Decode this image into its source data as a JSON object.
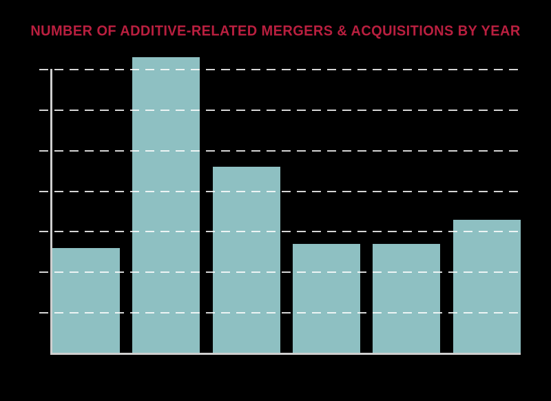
{
  "title": {
    "text": "NUMBER OF ADDITIVE-RELATED MERGERS & ACQUISITIONS BY YEAR"
  },
  "theme": {
    "background": "#000000",
    "title_color": "#b91f3f",
    "bar_color": "#8ec0c2",
    "gridline_color": "#ffffff",
    "gridline_opacity": "0.84",
    "axis_color": "#cfcfcf",
    "hidden_label_color": "#000000"
  },
  "chart_data": {
    "type": "bar",
    "title": "NUMBER OF ADDITIVE-RELATED MERGERS & ACQUISITIONS BY YEAR",
    "categories": [
      "",
      "",
      "",
      "",
      "",
      ""
    ],
    "values": [
      26,
      73,
      46,
      27,
      27,
      33
    ],
    "xlabel": "",
    "ylabel": "",
    "ylim": [
      0,
      80
    ],
    "gridlines": {
      "orientation": "horizontal",
      "style": "dashed",
      "interval": 10,
      "values": [
        10,
        20,
        30,
        40,
        50,
        60,
        70
      ]
    },
    "legend": "none",
    "value_labels_visible": false,
    "axis_tick_labels_visible": false
  }
}
